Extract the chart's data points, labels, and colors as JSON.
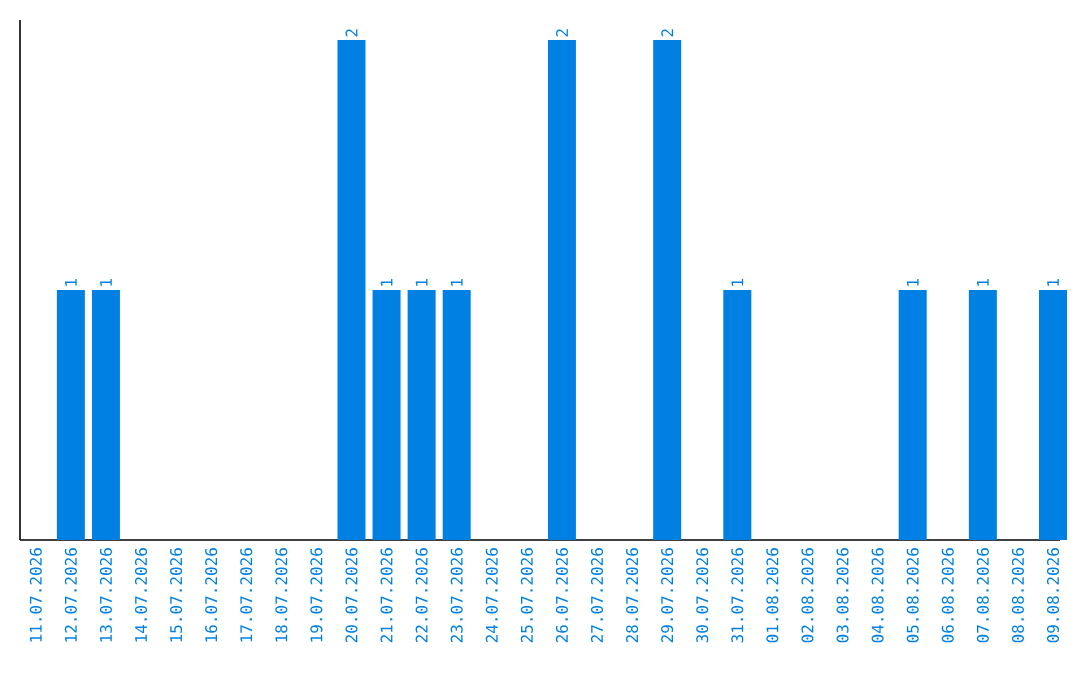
{
  "chart_data": {
    "type": "bar",
    "categories": [
      "11.07.2026",
      "12.07.2026",
      "13.07.2026",
      "14.07.2026",
      "15.07.2026",
      "16.07.2026",
      "17.07.2026",
      "18.07.2026",
      "19.07.2026",
      "20.07.2026",
      "21.07.2026",
      "22.07.2026",
      "23.07.2026",
      "24.07.2026",
      "25.07.2026",
      "26.07.2026",
      "27.07.2026",
      "28.07.2026",
      "29.07.2026",
      "30.07.2026",
      "31.07.2026",
      "01.08.2026",
      "02.08.2026",
      "03.08.2026",
      "04.08.2026",
      "05.08.2026",
      "06.08.2026",
      "07.08.2026",
      "08.08.2026",
      "09.08.2026"
    ],
    "values": [
      0,
      1,
      1,
      0,
      0,
      0,
      0,
      0,
      0,
      2,
      1,
      1,
      1,
      0,
      0,
      2,
      0,
      0,
      2,
      0,
      1,
      0,
      0,
      0,
      0,
      1,
      0,
      1,
      0,
      1
    ],
    "value_labels": [
      null,
      "1",
      "1",
      null,
      null,
      null,
      null,
      null,
      null,
      "2",
      "1",
      "1",
      "1",
      null,
      null,
      "2",
      null,
      null,
      "2",
      null,
      "1",
      null,
      null,
      null,
      null,
      "1",
      null,
      "1",
      null,
      "1"
    ],
    "color": "#0080e3"
  }
}
